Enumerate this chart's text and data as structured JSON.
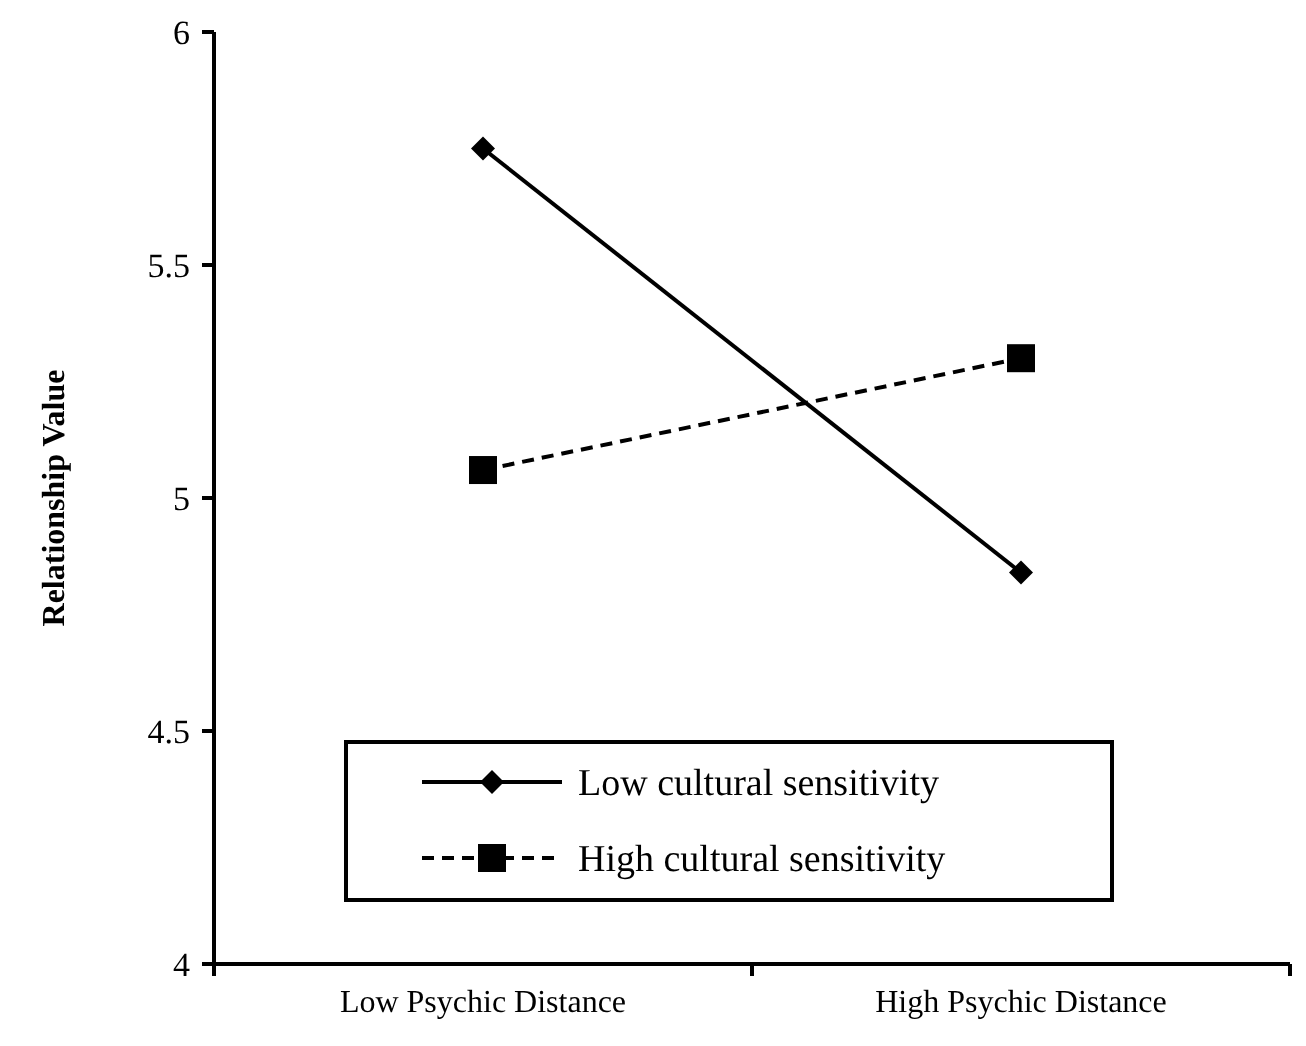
{
  "chart_data": {
    "type": "line",
    "ylabel": "Relationship Value",
    "categories": [
      "Low Psychic Distance",
      "High Psychic Distance"
    ],
    "series": [
      {
        "name": "Low cultural sensitivity",
        "color": "#000000",
        "values": [
          5.75,
          4.84
        ],
        "marker": "diamond",
        "line_style": "solid"
      },
      {
        "name": "High cultural sensitivity",
        "color": "#000000",
        "values": [
          5.06,
          5.3
        ],
        "marker": "square",
        "line_style": "dashed"
      }
    ],
    "ylim": [
      4,
      6
    ],
    "yticks": [
      4,
      4.5,
      5,
      5.5,
      6
    ],
    "grid": false,
    "legend": "bottom"
  }
}
